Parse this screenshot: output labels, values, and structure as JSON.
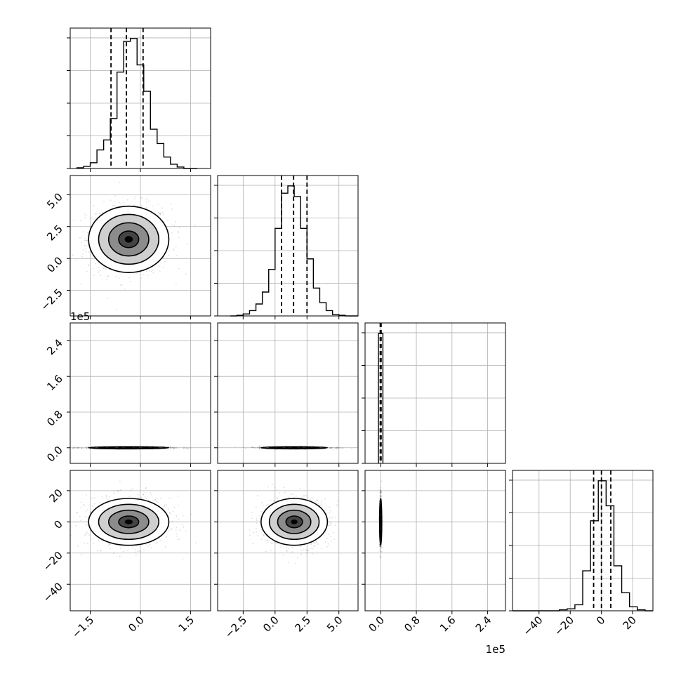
{
  "chart_data": {
    "type": "corner",
    "grid": true,
    "parameters": [
      "p0",
      "p1",
      "p2",
      "p3"
    ],
    "axes": {
      "p0": {
        "range": [
          -2.1,
          2.1
        ],
        "ticks": [
          -1.5,
          0.0,
          1.5
        ],
        "tick_labels": [
          "−1.5",
          "0.0",
          "1.5"
        ],
        "offset_label": ""
      },
      "p1": {
        "range": [
          -4.5,
          6.5
        ],
        "ticks": [
          -2.5,
          0.0,
          2.5,
          5.0
        ],
        "tick_labels": [
          "−2.5",
          "0.0",
          "2.5",
          "5.0"
        ],
        "offset_label": ""
      },
      "p2": {
        "range": [
          -0.35,
          2.8
        ],
        "ticks": [
          0.0,
          0.8,
          1.6,
          2.4
        ],
        "tick_labels": [
          "0.0",
          "0.8",
          "1.6",
          "2.4"
        ],
        "offset_label": "1e5"
      },
      "p3": {
        "range": [
          -57,
          33
        ],
        "ticks": [
          -40,
          -20,
          0,
          20
        ],
        "tick_labels": [
          "−40",
          "−20",
          "0",
          "20"
        ],
        "offset_label": ""
      }
    },
    "histograms": [
      {
        "param": "p0",
        "bin_edges": [
          -1.9,
          -1.7,
          -1.5,
          -1.3,
          -1.1,
          -0.9,
          -0.7,
          -0.5,
          -0.3,
          -0.1,
          0.1,
          0.3,
          0.5,
          0.7,
          0.9,
          1.1,
          1.3,
          1.5,
          1.7
        ],
        "counts": [
          1,
          3,
          8,
          26,
          40,
          70,
          135,
          178,
          182,
          145,
          108,
          55,
          35,
          16,
          6,
          2,
          0,
          0
        ],
        "quantiles": [
          -0.88,
          -0.42,
          0.08
        ]
      },
      {
        "param": "p1",
        "bin_edges": [
          -3.5,
          -3.0,
          -2.5,
          -2.0,
          -1.5,
          -1.0,
          -0.5,
          0.0,
          0.5,
          1.0,
          1.5,
          2.0,
          2.5,
          3.0,
          3.5,
          4.0,
          4.5,
          5.0,
          5.5,
          6.5
        ],
        "counts": [
          0,
          1,
          3,
          8,
          18,
          36,
          70,
          132,
          185,
          196,
          180,
          132,
          86,
          42,
          20,
          8,
          2,
          1,
          0
        ],
        "quantiles": [
          0.5,
          1.45,
          2.5
        ]
      },
      {
        "param": "p2",
        "bin_edges": [
          -0.05,
          0.05
        ],
        "counts": [
          196
        ],
        "quantiles": [
          -0.01,
          0.0,
          0.01
        ]
      },
      {
        "param": "p3",
        "bin_edges": [
          -57,
          -52,
          -47,
          -42,
          -37,
          -32,
          -27,
          -22,
          -17,
          -12,
          -7,
          -2,
          3,
          8,
          13,
          18,
          23,
          28,
          33
        ],
        "counts": [
          0,
          0,
          0,
          0,
          0,
          0,
          1,
          2,
          6,
          40,
          90,
          130,
          105,
          45,
          18,
          4,
          1,
          0
        ],
        "quantiles": [
          -5,
          0,
          6
        ]
      }
    ],
    "contours_2d": [
      {
        "x": "p0",
        "y": "p1",
        "center": [
          -0.35,
          1.5
        ],
        "sigma": [
          0.6,
          1.3
        ],
        "levels": [
          0.5,
          1.0,
          1.5,
          2.0
        ]
      },
      {
        "x": "p0",
        "y": "p2",
        "center": [
          -0.35,
          0.0
        ],
        "sigma": [
          0.6,
          0.012
        ],
        "levels": [
          0.5,
          1.0,
          1.5,
          2.0
        ]
      },
      {
        "x": "p1",
        "y": "p2",
        "center": [
          1.5,
          0.0
        ],
        "sigma": [
          1.3,
          0.012
        ],
        "levels": [
          0.5,
          1.0,
          1.5,
          2.0
        ]
      },
      {
        "x": "p0",
        "y": "p3",
        "center": [
          -0.35,
          0.0
        ],
        "sigma": [
          0.6,
          7.5
        ],
        "levels": [
          0.5,
          1.0,
          1.5,
          2.0
        ]
      },
      {
        "x": "p1",
        "y": "p3",
        "center": [
          1.5,
          0.0
        ],
        "sigma": [
          1.3,
          7.5
        ],
        "levels": [
          0.5,
          1.0,
          1.5,
          2.0
        ]
      },
      {
        "x": "p2",
        "y": "p3",
        "center": [
          0.0,
          0.0
        ],
        "sigma": [
          0.012,
          7.5
        ],
        "levels": [
          0.5,
          1.0,
          1.5,
          2.0
        ]
      }
    ]
  }
}
